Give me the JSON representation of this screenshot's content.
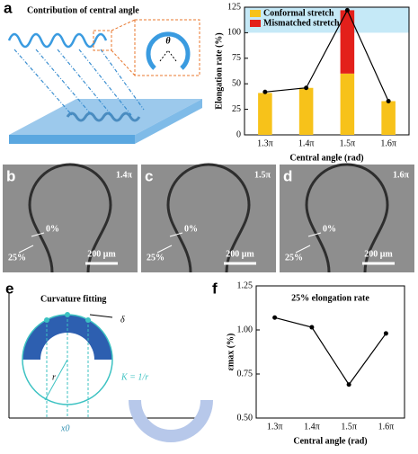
{
  "chart_data": [
    {
      "type": "bar",
      "ylabel": "Elongation rate (%)",
      "xlabel": "Central angle (rad)",
      "categories": [
        "1.3π",
        "1.4π",
        "1.5π",
        "1.6π"
      ],
      "series": [
        {
          "name": "Conformal stretch",
          "color": "#f7c21a",
          "values": [
            41,
            46,
            60,
            33
          ]
        },
        {
          "name": "Mismatched stretch",
          "color": "#e3201b",
          "values": [
            null,
            null,
            62,
            null
          ]
        },
        {
          "type": "line",
          "color": "#000000",
          "values": [
            42,
            46,
            122,
            33
          ]
        }
      ],
      "ylim": [
        0,
        125
      ],
      "yticks": [
        0,
        25,
        50,
        75,
        100,
        125
      ],
      "band": [
        100,
        125
      ],
      "band_color": "#c5e9f7",
      "legend": "top-left"
    },
    {
      "type": "line",
      "title": "25% elongation rate",
      "ylabel": "εmax (%)",
      "xlabel": "Central angle (rad)",
      "categories": [
        "1.3π",
        "1.4π",
        "1.5π",
        "1.6π"
      ],
      "series": [
        {
          "color": "#000000",
          "values": [
            1.07,
            1.015,
            0.69,
            0.98
          ]
        }
      ],
      "ylim": [
        0.5,
        1.25
      ],
      "yticks": [
        {
          "value": 0.5,
          "label": "0.50"
        },
        {
          "value": 0.75,
          "label": "0.75"
        },
        {
          "value": 1.0,
          "label": "1.00"
        },
        {
          "value": 1.25,
          "label": "1.25"
        }
      ]
    }
  ],
  "panel_a": {
    "label": "a",
    "title": "Contribution of central angle",
    "theta": "θ"
  },
  "micrographs": [
    {
      "label": "b",
      "angle": "1.4π",
      "strain0": "0%",
      "strain25": "25%",
      "scale": "200 μm"
    },
    {
      "label": "c",
      "angle": "1.5π",
      "strain0": "0%",
      "strain25": "25%",
      "scale": "200 μm"
    },
    {
      "label": "d",
      "angle": "1.6π",
      "strain0": "0%",
      "strain25": "25%",
      "scale": "200 μm"
    }
  ],
  "panel_e": {
    "label": "e",
    "title": "Curvature fitting",
    "delta": "δ",
    "r": "r",
    "x0": "x0",
    "k": "K = 1/r"
  },
  "panel_f": {
    "label": "f"
  }
}
